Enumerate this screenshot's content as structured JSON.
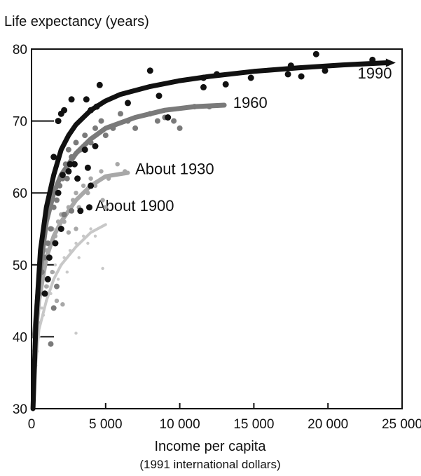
{
  "chart_data": {
    "type": "scatter",
    "ylabel": "Life expectancy (years)",
    "xlabel": "Income per capita",
    "xlabel_sub": "(1991 international dollars)",
    "xlim": [
      0,
      25000
    ],
    "ylim": [
      30,
      80
    ],
    "x_ticks": [
      0,
      5000,
      10000,
      15000,
      20000,
      25000
    ],
    "x_tick_labels": [
      "0",
      "5 000",
      "10 000",
      "15 000",
      "20 000",
      "25 000"
    ],
    "y_ticks": [
      30,
      40,
      50,
      60,
      70,
      80
    ],
    "y_tick_labels": [
      "30",
      "40",
      "50",
      "60",
      "70",
      "80"
    ],
    "grid": false,
    "series": [
      {
        "name": "About 1900",
        "color": "#c8c8c8",
        "curve": [
          [
            200,
            34
          ],
          [
            500,
            41
          ],
          [
            1000,
            45
          ],
          [
            1500,
            48
          ],
          [
            2000,
            50
          ],
          [
            3000,
            52.5
          ],
          [
            4000,
            54.5
          ],
          [
            5000,
            55.6
          ]
        ],
        "points": [
          [
            300,
            36
          ],
          [
            400,
            38
          ],
          [
            500,
            40
          ],
          [
            600,
            42
          ],
          [
            700,
            44
          ],
          [
            800,
            43
          ],
          [
            900,
            46
          ],
          [
            1000,
            45
          ],
          [
            1100,
            47
          ],
          [
            1200,
            48
          ],
          [
            1300,
            46
          ],
          [
            1500,
            49
          ],
          [
            1600,
            50
          ],
          [
            1800,
            48
          ],
          [
            2000,
            50
          ],
          [
            2200,
            51
          ],
          [
            2400,
            49
          ],
          [
            2600,
            52
          ],
          [
            2800,
            52
          ],
          [
            3000,
            53
          ],
          [
            3200,
            51
          ],
          [
            3500,
            54
          ],
          [
            3800,
            53
          ],
          [
            4000,
            55
          ],
          [
            4300,
            54
          ],
          [
            4800,
            49.5
          ],
          [
            3000,
            40.5
          ]
        ]
      },
      {
        "name": "About 1930",
        "color": "#a8a8a8",
        "curve": [
          [
            200,
            38
          ],
          [
            500,
            45
          ],
          [
            1000,
            51
          ],
          [
            1500,
            54
          ],
          [
            2000,
            56
          ],
          [
            3000,
            59
          ],
          [
            4000,
            61
          ],
          [
            5000,
            62.3
          ],
          [
            6500,
            62.8
          ]
        ],
        "points": [
          [
            400,
            42
          ],
          [
            600,
            46
          ],
          [
            800,
            50
          ],
          [
            1000,
            52
          ],
          [
            1200,
            53
          ],
          [
            1400,
            55
          ],
          [
            1600,
            54
          ],
          [
            1800,
            56
          ],
          [
            2000,
            57
          ],
          [
            2200,
            56
          ],
          [
            2500,
            58
          ],
          [
            2800,
            59
          ],
          [
            3000,
            60
          ],
          [
            3200,
            58
          ],
          [
            3500,
            61
          ],
          [
            3800,
            60
          ],
          [
            4000,
            62
          ],
          [
            4300,
            61
          ],
          [
            4700,
            63
          ],
          [
            5200,
            62
          ],
          [
            5800,
            64
          ],
          [
            6300,
            63
          ],
          [
            4800,
            59
          ],
          [
            5000,
            58
          ],
          [
            3000,
            55
          ],
          [
            2500,
            54.5
          ],
          [
            1400,
            49
          ],
          [
            1000,
            47
          ],
          [
            1700,
            45
          ],
          [
            2100,
            44.5
          ]
        ]
      },
      {
        "name": "1960",
        "color": "#7a7a7a",
        "curve": [
          [
            200,
            40
          ],
          [
            500,
            48
          ],
          [
            1000,
            56
          ],
          [
            1500,
            60
          ],
          [
            2000,
            62.5
          ],
          [
            3000,
            65.5
          ],
          [
            4000,
            67.5
          ],
          [
            5000,
            69
          ],
          [
            7000,
            70.5
          ],
          [
            9000,
            71.5
          ],
          [
            11000,
            72
          ],
          [
            13000,
            72.2
          ]
        ],
        "points": [
          [
            500,
            46
          ],
          [
            700,
            49
          ],
          [
            900,
            51
          ],
          [
            1100,
            53
          ],
          [
            1300,
            55
          ],
          [
            1500,
            58
          ],
          [
            1700,
            59
          ],
          [
            1900,
            61
          ],
          [
            2100,
            62
          ],
          [
            2300,
            64
          ],
          [
            2500,
            66
          ],
          [
            2700,
            65
          ],
          [
            3000,
            67
          ],
          [
            3300,
            66
          ],
          [
            3600,
            68
          ],
          [
            4000,
            67
          ],
          [
            4300,
            69
          ],
          [
            4700,
            70
          ],
          [
            5000,
            68
          ],
          [
            5500,
            69
          ],
          [
            6000,
            71
          ],
          [
            6500,
            70
          ],
          [
            7000,
            69
          ],
          [
            8000,
            71
          ],
          [
            8500,
            70
          ],
          [
            9000,
            70.5
          ],
          [
            9600,
            70
          ],
          [
            10000,
            69
          ],
          [
            11000,
            72
          ],
          [
            12000,
            72
          ],
          [
            2200,
            57
          ],
          [
            2700,
            57.5
          ],
          [
            2400,
            62
          ],
          [
            1500,
            44
          ],
          [
            1700,
            47
          ],
          [
            1300,
            39
          ]
        ]
      },
      {
        "name": "1990",
        "color": "#111111",
        "curve": [
          [
            100,
            30
          ],
          [
            300,
            42
          ],
          [
            600,
            52
          ],
          [
            1000,
            58
          ],
          [
            1500,
            62.5
          ],
          [
            2000,
            66
          ],
          [
            2500,
            68
          ],
          [
            3000,
            69.5
          ],
          [
            4000,
            71.5
          ],
          [
            5000,
            72.8
          ],
          [
            6000,
            73.7
          ],
          [
            8000,
            74.8
          ],
          [
            10000,
            75.6
          ],
          [
            12000,
            76.2
          ],
          [
            15000,
            76.9
          ],
          [
            18000,
            77.4
          ],
          [
            21000,
            77.8
          ],
          [
            24000,
            78.1
          ]
        ],
        "points": [
          [
            1500,
            65
          ],
          [
            1800,
            70
          ],
          [
            2000,
            71
          ],
          [
            2200,
            71.5
          ],
          [
            2700,
            73
          ],
          [
            3700,
            73
          ],
          [
            4000,
            71.5
          ],
          [
            4600,
            75
          ],
          [
            4400,
            72
          ],
          [
            6500,
            72.5
          ],
          [
            8000,
            77
          ],
          [
            8600,
            73.5
          ],
          [
            9200,
            70.5
          ],
          [
            11600,
            76
          ],
          [
            12500,
            76.5
          ],
          [
            11600,
            74.7
          ],
          [
            14800,
            76
          ],
          [
            13100,
            75.1
          ],
          [
            17500,
            77.7
          ],
          [
            18200,
            76.2
          ],
          [
            17300,
            76.5
          ],
          [
            19200,
            79.3
          ],
          [
            19800,
            77
          ],
          [
            23000,
            78.5
          ],
          [
            2500,
            63
          ],
          [
            3800,
            63.5
          ],
          [
            2600,
            64
          ],
          [
            2900,
            64
          ],
          [
            3600,
            66
          ],
          [
            4300,
            66.5
          ],
          [
            4000,
            61
          ],
          [
            3900,
            58
          ],
          [
            3300,
            57.5
          ],
          [
            2000,
            55
          ],
          [
            1600,
            53
          ],
          [
            1200,
            51
          ],
          [
            1100,
            48
          ],
          [
            900,
            46
          ],
          [
            2100,
            62.5
          ],
          [
            1800,
            60
          ],
          [
            3100,
            62
          ]
        ]
      }
    ]
  }
}
